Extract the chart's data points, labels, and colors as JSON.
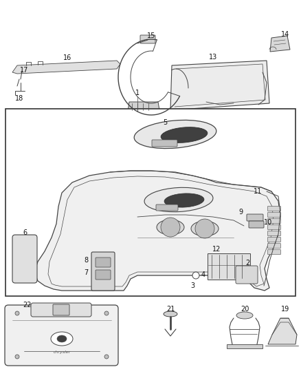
{
  "bg_color": "#ffffff",
  "line_color": "#444444",
  "label_color": "#111111",
  "label_fontsize": 7,
  "fig_width": 4.38,
  "fig_height": 5.33,
  "dpi": 100
}
